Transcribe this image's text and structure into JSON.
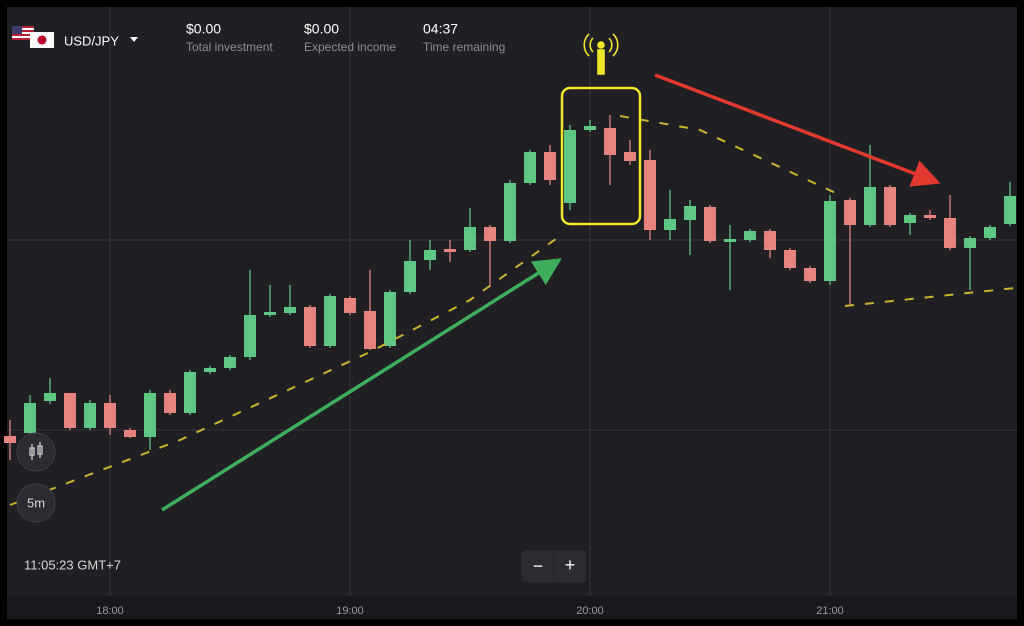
{
  "header": {
    "pair": "USD/JPY",
    "stats": [
      {
        "value": "$0.00",
        "label": "Total investment"
      },
      {
        "value": "$0.00",
        "label": "Expected income"
      },
      {
        "value": "04:37",
        "label": "Time remaining"
      }
    ]
  },
  "controls": {
    "timeframe": "5m",
    "zoom_out": "−",
    "zoom_in": "+"
  },
  "clock": "11:05:23 GMT+7",
  "x_axis": {
    "labels": [
      "18:00",
      "19:00",
      "20:00",
      "21:00"
    ]
  }
}
